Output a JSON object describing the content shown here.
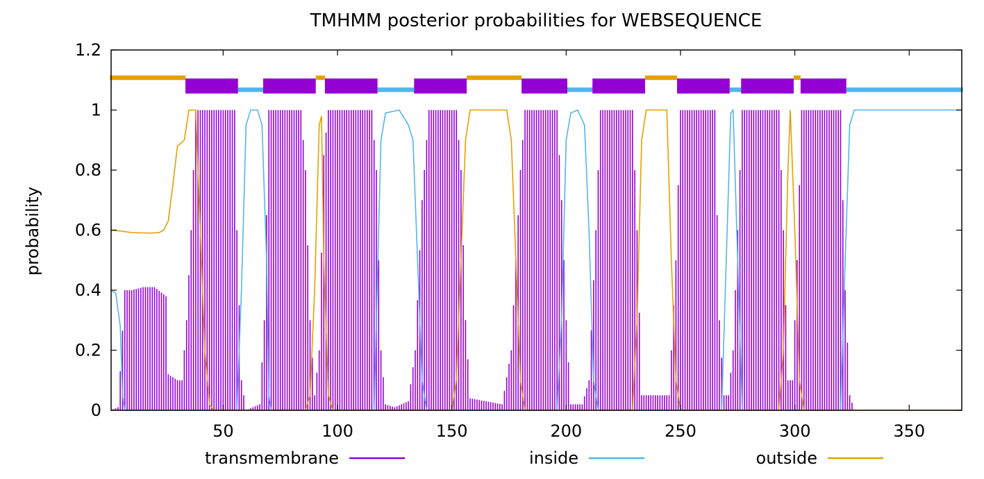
{
  "chart_data": {
    "type": "line",
    "title": "TMHMM posterior probabilities for WEBSEQUENCE",
    "xlabel": "",
    "ylabel": "probability",
    "xlim": [
      1,
      373
    ],
    "ylim": [
      0,
      1.2
    ],
    "x_ticks": [
      50,
      100,
      150,
      200,
      250,
      300,
      350
    ],
    "y_ticks": [
      0,
      0.2,
      0.4,
      0.6,
      0.8,
      1,
      1.2
    ],
    "y_tick_labels": [
      "0",
      "0.2",
      "0.4",
      "0.6",
      "0.8",
      "1",
      "1.2"
    ],
    "grid": false,
    "legend_position": "bottom",
    "colors": {
      "transmembrane": "#9400d3",
      "inside": "#56b4e9",
      "outside": "#e69f00"
    },
    "series": [
      {
        "name": "transmembrane",
        "style": "impulses",
        "points": [
          [
            1,
            0
          ],
          [
            4,
            0.01
          ],
          [
            5,
            0.13
          ],
          [
            7,
            0.4
          ],
          [
            10,
            0.4
          ],
          [
            15,
            0.41
          ],
          [
            20,
            0.41
          ],
          [
            25,
            0.38
          ],
          [
            26,
            0.12
          ],
          [
            30,
            0.1
          ],
          [
            32,
            0.1
          ],
          [
            34,
            0.3
          ],
          [
            36,
            0.6
          ],
          [
            38,
            1
          ],
          [
            55,
            1
          ],
          [
            56,
            0.6
          ],
          [
            58,
            0.1
          ],
          [
            60,
            0
          ],
          [
            66,
            0.02
          ],
          [
            68,
            0.3
          ],
          [
            70,
            1
          ],
          [
            84,
            1
          ],
          [
            86,
            0.8
          ],
          [
            88,
            0.3
          ],
          [
            90,
            0.05
          ],
          [
            92,
            0.2
          ],
          [
            94,
            0.85
          ],
          [
            96,
            1
          ],
          [
            115,
            1
          ],
          [
            117,
            0.8
          ],
          [
            119,
            0.2
          ],
          [
            121,
            0.02
          ],
          [
            125,
            0.01
          ],
          [
            131,
            0.03
          ],
          [
            134,
            0.2
          ],
          [
            137,
            0.7
          ],
          [
            140,
            1
          ],
          [
            152,
            1
          ],
          [
            154,
            0.8
          ],
          [
            156,
            0.3
          ],
          [
            158,
            0.04
          ],
          [
            172,
            0.02
          ],
          [
            176,
            0.2
          ],
          [
            180,
            0.8
          ],
          [
            182,
            1
          ],
          [
            196,
            1
          ],
          [
            198,
            0.7
          ],
          [
            200,
            0.3
          ],
          [
            202,
            0.02
          ],
          [
            207,
            0.02
          ],
          [
            210,
            0.1
          ],
          [
            213,
            0.6
          ],
          [
            215,
            1
          ],
          [
            229,
            1
          ],
          [
            231,
            0.6
          ],
          [
            233,
            0.05
          ],
          [
            245,
            0.05
          ],
          [
            248,
            0.5
          ],
          [
            250,
            1
          ],
          [
            265,
            1
          ],
          [
            267,
            0.3
          ],
          [
            269,
            0.05
          ],
          [
            271,
            0.05
          ],
          [
            273,
            0.2
          ],
          [
            275,
            0.6
          ],
          [
            277,
            1
          ],
          [
            293,
            1
          ],
          [
            295,
            0.6
          ],
          [
            297,
            0.1
          ],
          [
            299,
            0.1
          ],
          [
            301,
            0.5
          ],
          [
            303,
            1
          ],
          [
            320,
            1
          ],
          [
            322,
            0.4
          ],
          [
            324,
            0.05
          ],
          [
            326,
            0
          ],
          [
            373,
            0
          ]
        ]
      },
      {
        "name": "inside",
        "style": "line",
        "points": [
          [
            1,
            0.4
          ],
          [
            3,
            0.39
          ],
          [
            5,
            0.28
          ],
          [
            6,
            0.05
          ],
          [
            7,
            0
          ],
          [
            56,
            0
          ],
          [
            58,
            0.4
          ],
          [
            60,
            0.95
          ],
          [
            62,
            1
          ],
          [
            65,
            1
          ],
          [
            67,
            0.95
          ],
          [
            69,
            0.5
          ],
          [
            70,
            0.05
          ],
          [
            71,
            0
          ],
          [
            116,
            0
          ],
          [
            117,
            0.3
          ],
          [
            119,
            0.9
          ],
          [
            121,
            0.99
          ],
          [
            127,
            1
          ],
          [
            131,
            0.95
          ],
          [
            133,
            0.9
          ],
          [
            135,
            0.5
          ],
          [
            137,
            0.1
          ],
          [
            139,
            0
          ],
          [
            196,
            0
          ],
          [
            198,
            0.3
          ],
          [
            200,
            0.9
          ],
          [
            202,
            0.99
          ],
          [
            205,
            1
          ],
          [
            208,
            0.95
          ],
          [
            210,
            0.6
          ],
          [
            212,
            0.1
          ],
          [
            214,
            0
          ],
          [
            268,
            0
          ],
          [
            270,
            0.5
          ],
          [
            272,
            0.99
          ],
          [
            273,
            1
          ],
          [
            275,
            0.5
          ],
          [
            277,
            0
          ],
          [
            320,
            0
          ],
          [
            322,
            0.5
          ],
          [
            324,
            0.95
          ],
          [
            326,
            1
          ],
          [
            373,
            1
          ]
        ]
      },
      {
        "name": "outside",
        "style": "line",
        "points": [
          [
            1,
            0.6
          ],
          [
            5,
            0.597
          ],
          [
            10,
            0.592
          ],
          [
            18,
            0.59
          ],
          [
            22,
            0.592
          ],
          [
            24,
            0.6
          ],
          [
            26,
            0.63
          ],
          [
            28,
            0.75
          ],
          [
            30,
            0.88
          ],
          [
            33,
            0.9
          ],
          [
            34,
            0.95
          ],
          [
            35,
            1
          ],
          [
            38,
            1
          ],
          [
            40,
            0.6
          ],
          [
            42,
            0.2
          ],
          [
            44,
            0.02
          ],
          [
            46,
            0
          ],
          [
            86,
            0
          ],
          [
            88,
            0.05
          ],
          [
            90,
            0.4
          ],
          [
            92,
            0.95
          ],
          [
            93,
            0.98
          ],
          [
            94,
            0.5
          ],
          [
            96,
            0.05
          ],
          [
            98,
            0
          ],
          [
            150,
            0
          ],
          [
            152,
            0.1
          ],
          [
            154,
            0.5
          ],
          [
            156,
            0.9
          ],
          [
            158,
            1
          ],
          [
            174,
            1
          ],
          [
            176,
            0.9
          ],
          [
            178,
            0.5
          ],
          [
            180,
            0.1
          ],
          [
            182,
            0
          ],
          [
            229,
            0
          ],
          [
            231,
            0.3
          ],
          [
            233,
            0.9
          ],
          [
            235,
            1
          ],
          [
            244,
            1
          ],
          [
            246,
            0.5
          ],
          [
            248,
            0.1
          ],
          [
            250,
            0
          ],
          [
            293,
            0
          ],
          [
            295,
            0.2
          ],
          [
            297,
            0.8
          ],
          [
            298,
            1
          ],
          [
            300,
            0.6
          ],
          [
            302,
            0.1
          ],
          [
            304,
            0
          ],
          [
            373,
            0
          ]
        ]
      }
    ],
    "topology_bar": [
      {
        "region": "outside",
        "start": 1,
        "end": 33
      },
      {
        "region": "transmembrane",
        "start": 34,
        "end": 56
      },
      {
        "region": "inside",
        "start": 57,
        "end": 67
      },
      {
        "region": "transmembrane",
        "start": 68,
        "end": 90
      },
      {
        "region": "outside",
        "start": 91,
        "end": 94
      },
      {
        "region": "transmembrane",
        "start": 95,
        "end": 117
      },
      {
        "region": "inside",
        "start": 118,
        "end": 133
      },
      {
        "region": "transmembrane",
        "start": 134,
        "end": 156
      },
      {
        "region": "outside",
        "start": 157,
        "end": 180
      },
      {
        "region": "transmembrane",
        "start": 181,
        "end": 200
      },
      {
        "region": "inside",
        "start": 201,
        "end": 211
      },
      {
        "region": "transmembrane",
        "start": 212,
        "end": 234
      },
      {
        "region": "outside",
        "start": 235,
        "end": 248
      },
      {
        "region": "transmembrane",
        "start": 249,
        "end": 271
      },
      {
        "region": "inside",
        "start": 272,
        "end": 276
      },
      {
        "region": "transmembrane",
        "start": 277,
        "end": 299
      },
      {
        "region": "outside",
        "start": 300,
        "end": 302
      },
      {
        "region": "transmembrane",
        "start": 303,
        "end": 322
      },
      {
        "region": "inside",
        "start": 323,
        "end": 373
      }
    ]
  }
}
